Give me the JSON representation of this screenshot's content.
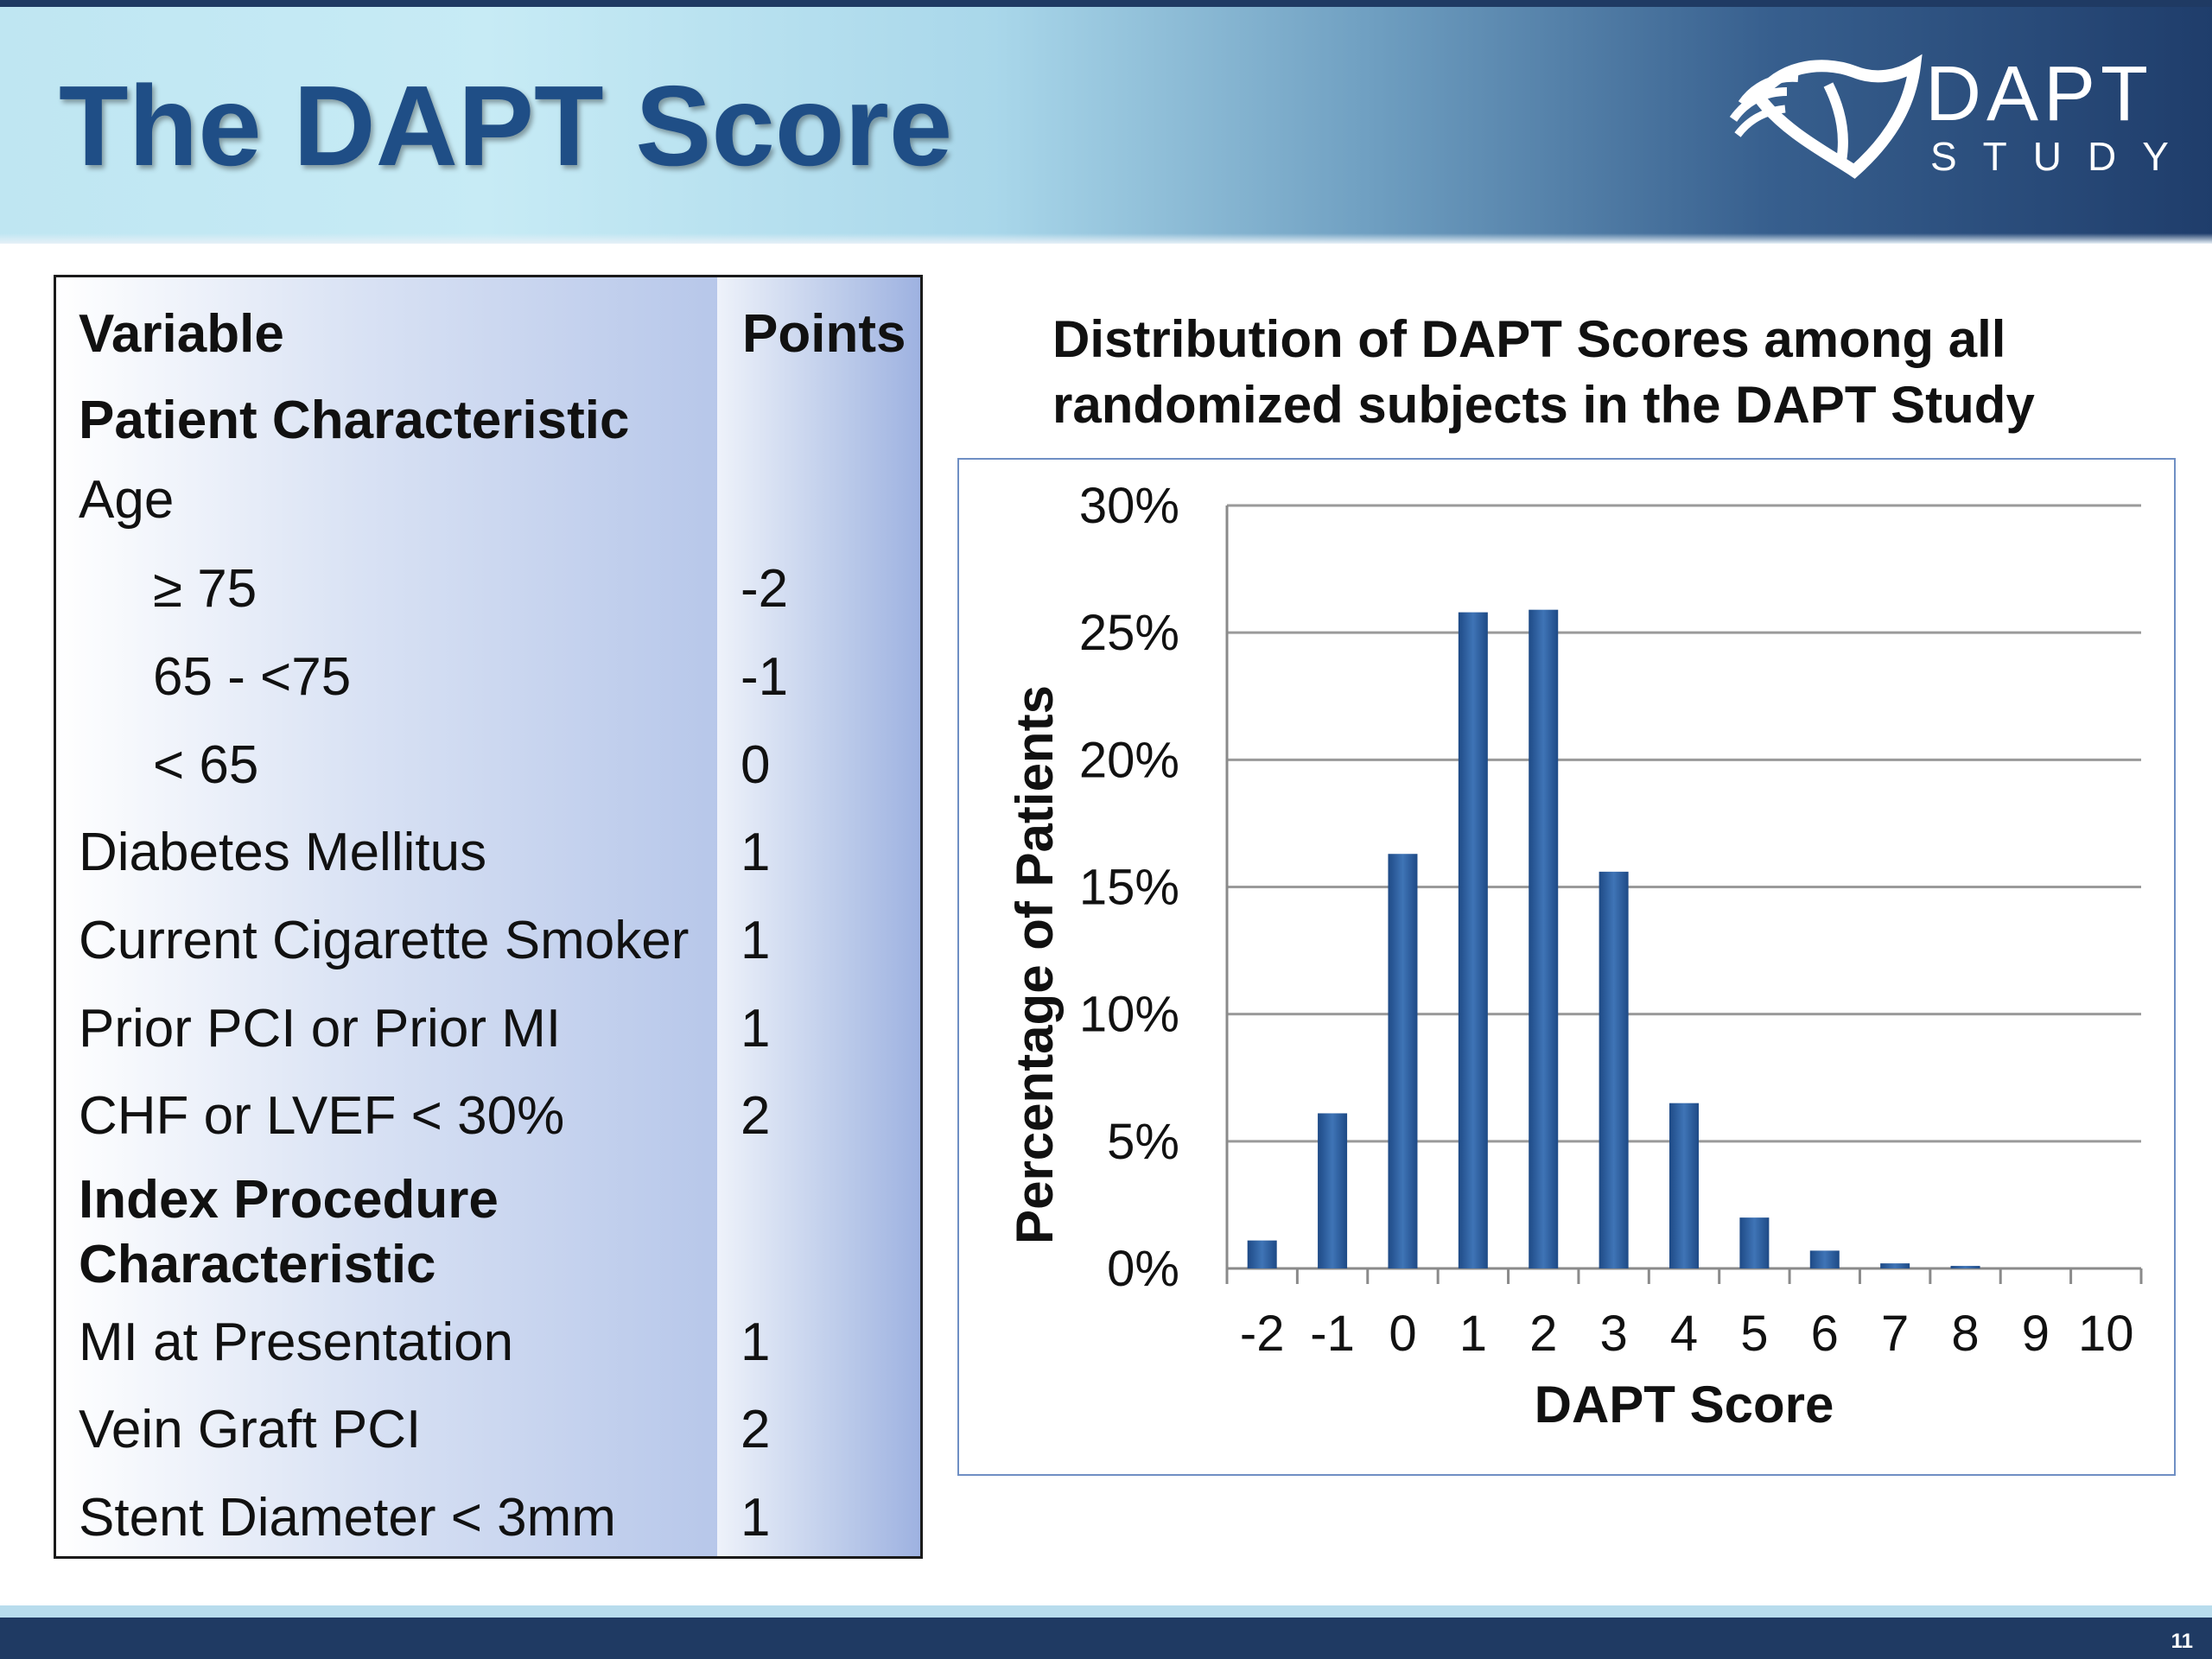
{
  "slide": {
    "title": "The DAPT Score",
    "logo_word": "DAPT",
    "logo_sub": "STUDY",
    "page_number": "11",
    "colors": {
      "title": "#1f4e86",
      "header_dark": "#1f3a63",
      "bar": "#2f5f9e"
    }
  },
  "table": {
    "header_variable": "Variable",
    "header_points": "Points",
    "rows": [
      {
        "variable": "Patient Characteristic",
        "points": "",
        "style": "section"
      },
      {
        "variable": "Age",
        "points": "",
        "style": "plain"
      },
      {
        "variable": "≥ 75",
        "points": "-2",
        "style": "indent"
      },
      {
        "variable": "65 - <75",
        "points": "-1",
        "style": "indent"
      },
      {
        "variable": "< 65",
        "points": "0",
        "style": "indent"
      },
      {
        "variable": "Diabetes Mellitus",
        "points": "1",
        "style": "plain"
      },
      {
        "variable": "Current Cigarette Smoker",
        "points": "1",
        "style": "plain"
      },
      {
        "variable": "Prior PCI or Prior MI",
        "points": "1",
        "style": "plain"
      },
      {
        "variable": "CHF or LVEF < 30%",
        "points": "2",
        "style": "plain"
      },
      {
        "variable": "Index Procedure Characteristic",
        "points": "",
        "style": "section"
      },
      {
        "variable": "MI at Presentation",
        "points": "1",
        "style": "plain"
      },
      {
        "variable": "Vein Graft PCI",
        "points": "2",
        "style": "plain"
      },
      {
        "variable": "Stent Diameter < 3mm",
        "points": "1",
        "style": "plain"
      }
    ]
  },
  "chart_data": {
    "type": "bar",
    "title": "Distribution of DAPT Scores among all randomized subjects in the DAPT Study",
    "title_lines": [
      "Distribution of DAPT Scores among all",
      "randomized subjects in the DAPT Study"
    ],
    "xlabel": "DAPT Score",
    "ylabel": "Percentage of Patients",
    "categories": [
      "-2",
      "-1",
      "0",
      "1",
      "2",
      "3",
      "4",
      "5",
      "6",
      "7",
      "8",
      "9",
      "10"
    ],
    "values": [
      1.1,
      6.1,
      16.3,
      25.8,
      25.9,
      15.6,
      6.5,
      2.0,
      0.7,
      0.2,
      0.1,
      0.0,
      0.0
    ],
    "yticks": [
      "0%",
      "5%",
      "10%",
      "15%",
      "20%",
      "25%",
      "30%"
    ],
    "ylim": [
      0,
      30
    ],
    "grid": true,
    "legend": "none"
  }
}
